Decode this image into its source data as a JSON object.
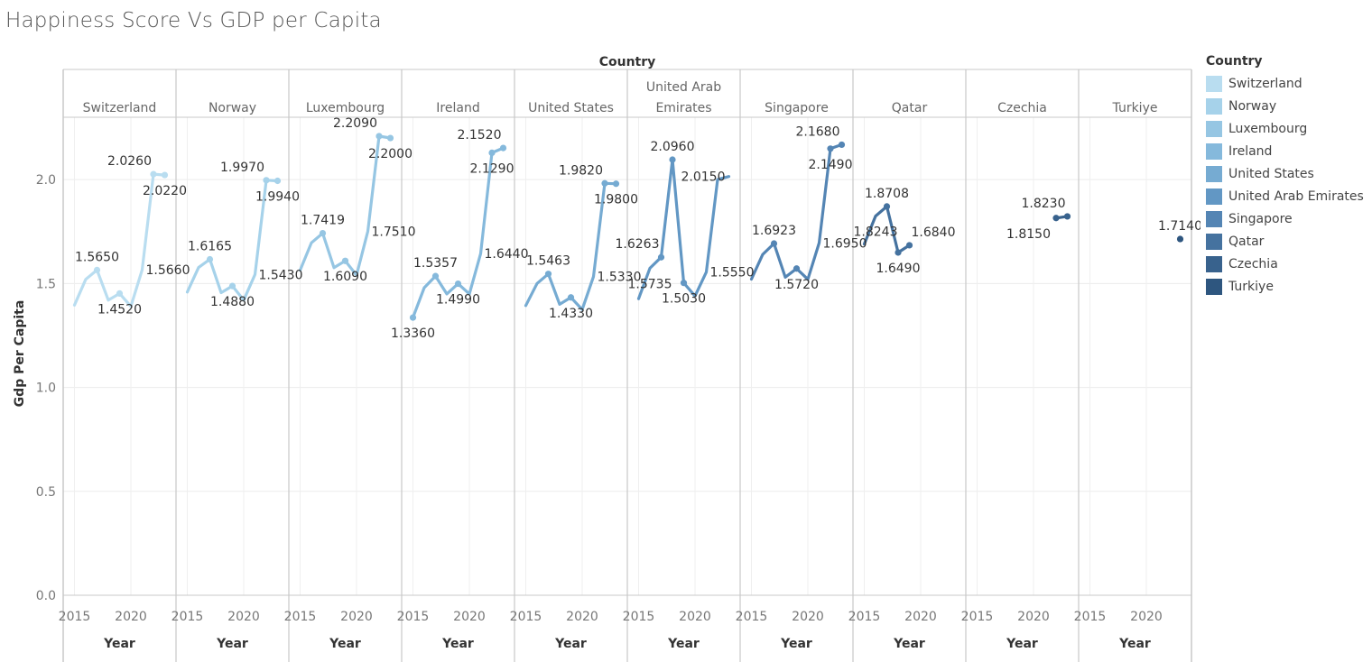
{
  "title": "Happiness Score Vs GDP per Capita",
  "chart_data": {
    "type": "line",
    "title": "Happiness Score Vs GDP per Capita",
    "column_header": "Country",
    "xlabel": "Year",
    "ylabel": "Gdp Per Capita",
    "ylim": [
      0,
      2.3
    ],
    "yticks": [
      "0.0",
      "0.5",
      "1.0",
      "1.5",
      "2.0"
    ],
    "xlim": [
      2014,
      2024
    ],
    "xticks": [
      "2015",
      "2020"
    ],
    "grid": true,
    "legend_title": "Country",
    "legend_position": "right",
    "panels": [
      {
        "name": "Switzerland",
        "name_lines": [
          "Switzerland"
        ],
        "color": "#b9ddf0",
        "x": [
          2015,
          2016,
          2017,
          2018,
          2019,
          2020,
          2021,
          2022,
          2023
        ],
        "y": [
          1.396,
          1.52,
          1.565,
          1.42,
          1.452,
          1.39,
          1.566,
          2.026,
          2.022
        ],
        "markers": [
          2017,
          2019,
          2022,
          2023
        ],
        "labels": [
          {
            "x": 2017,
            "text": "1.5650",
            "pos": "above"
          },
          {
            "x": 2019,
            "text": "1.4520",
            "pos": "below"
          },
          {
            "x": 2021,
            "text": "1.5660",
            "pos": "right"
          },
          {
            "x": 2022,
            "text": "2.0260",
            "pos": "above-left"
          },
          {
            "x": 2023,
            "text": "2.0220",
            "pos": "below"
          }
        ]
      },
      {
        "name": "Norway",
        "name_lines": [
          "Norway"
        ],
        "color": "#a6d2ea",
        "x": [
          2015,
          2016,
          2017,
          2018,
          2019,
          2020,
          2021,
          2022,
          2023
        ],
        "y": [
          1.459,
          1.577,
          1.6165,
          1.456,
          1.488,
          1.42,
          1.543,
          1.997,
          1.994
        ],
        "markers": [
          2017,
          2019,
          2022,
          2023
        ],
        "labels": [
          {
            "x": 2017,
            "text": "1.6165",
            "pos": "above"
          },
          {
            "x": 2019,
            "text": "1.4880",
            "pos": "below"
          },
          {
            "x": 2021,
            "text": "1.5430",
            "pos": "right"
          },
          {
            "x": 2022,
            "text": "1.9970",
            "pos": "above-left"
          },
          {
            "x": 2023,
            "text": "1.9940",
            "pos": "below"
          }
        ]
      },
      {
        "name": "Luxembourg",
        "name_lines": [
          "Luxembourg"
        ],
        "color": "#96c6e3",
        "x": [
          2015,
          2016,
          2017,
          2018,
          2019,
          2020,
          2021,
          2022,
          2023
        ],
        "y": [
          1.564,
          1.696,
          1.7419,
          1.576,
          1.609,
          1.54,
          1.751,
          2.209,
          2.2
        ],
        "markers": [
          2017,
          2019,
          2022,
          2023
        ],
        "labels": [
          {
            "x": 2017,
            "text": "1.7419",
            "pos": "above"
          },
          {
            "x": 2019,
            "text": "1.6090",
            "pos": "below"
          },
          {
            "x": 2021,
            "text": "1.7510",
            "pos": "right"
          },
          {
            "x": 2022,
            "text": "2.2090",
            "pos": "above-left"
          },
          {
            "x": 2023,
            "text": "2.2000",
            "pos": "below"
          }
        ]
      },
      {
        "name": "Ireland",
        "name_lines": [
          "Ireland"
        ],
        "color": "#85b9dc",
        "x": [
          2015,
          2016,
          2017,
          2018,
          2019,
          2020,
          2021,
          2022,
          2023
        ],
        "y": [
          1.336,
          1.48,
          1.5357,
          1.45,
          1.499,
          1.45,
          1.644,
          2.129,
          2.152
        ],
        "markers": [
          2015,
          2017,
          2019,
          2022,
          2023
        ],
        "labels": [
          {
            "x": 2015,
            "text": "1.3360",
            "pos": "below"
          },
          {
            "x": 2017,
            "text": "1.5357",
            "pos": "above"
          },
          {
            "x": 2019,
            "text": "1.4990",
            "pos": "below"
          },
          {
            "x": 2021,
            "text": "1.6440",
            "pos": "right"
          },
          {
            "x": 2022,
            "text": "2.1290",
            "pos": "below"
          },
          {
            "x": 2023,
            "text": "2.1520",
            "pos": "above-left"
          }
        ]
      },
      {
        "name": "United States",
        "name_lines": [
          "United States"
        ],
        "color": "#76abd2",
        "x": [
          2015,
          2016,
          2017,
          2018,
          2019,
          2020,
          2021,
          2022,
          2023
        ],
        "y": [
          1.394,
          1.5,
          1.5463,
          1.4,
          1.433,
          1.375,
          1.533,
          1.982,
          1.98
        ],
        "markers": [
          2017,
          2019,
          2022,
          2023
        ],
        "labels": [
          {
            "x": 2017,
            "text": "1.5463",
            "pos": "above"
          },
          {
            "x": 2019,
            "text": "1.4330",
            "pos": "below"
          },
          {
            "x": 2021,
            "text": "1.5330",
            "pos": "right"
          },
          {
            "x": 2022,
            "text": "1.9820",
            "pos": "above-left"
          },
          {
            "x": 2023,
            "text": "1.9800",
            "pos": "below"
          }
        ]
      },
      {
        "name": "United Arab Emirates",
        "name_lines": [
          "United Arab",
          "Emirates"
        ],
        "color": "#6297c4",
        "x": [
          2015,
          2016,
          2017,
          2018,
          2019,
          2020,
          2021,
          2022,
          2023
        ],
        "y": [
          1.427,
          1.5735,
          1.6263,
          2.096,
          1.503,
          1.44,
          1.555,
          2.0,
          2.015
        ],
        "markers": [
          2017,
          2018,
          2019
        ],
        "labels": [
          {
            "x": 2016,
            "text": "1.5735",
            "pos": "below"
          },
          {
            "x": 2017,
            "text": "1.6263",
            "pos": "above-left"
          },
          {
            "x": 2018,
            "text": "2.0960",
            "pos": "above"
          },
          {
            "x": 2019,
            "text": "1.5030",
            "pos": "below"
          },
          {
            "x": 2021,
            "text": "1.5550",
            "pos": "right"
          },
          {
            "x": 2023,
            "text": "2.0150",
            "pos": "left"
          }
        ]
      },
      {
        "name": "Singapore",
        "name_lines": [
          "Singapore"
        ],
        "color": "#5485b4",
        "x": [
          2015,
          2016,
          2017,
          2018,
          2019,
          2020,
          2021,
          2022,
          2023
        ],
        "y": [
          1.521,
          1.64,
          1.6923,
          1.53,
          1.572,
          1.52,
          1.695,
          2.149,
          2.168
        ],
        "markers": [
          2017,
          2019,
          2022,
          2023
        ],
        "labels": [
          {
            "x": 2017,
            "text": "1.6923",
            "pos": "above"
          },
          {
            "x": 2019,
            "text": "1.5720",
            "pos": "below"
          },
          {
            "x": 2021,
            "text": "1.6950",
            "pos": "right"
          },
          {
            "x": 2022,
            "text": "2.1490",
            "pos": "below"
          },
          {
            "x": 2023,
            "text": "2.1680",
            "pos": "above-left"
          }
        ]
      },
      {
        "name": "Qatar",
        "name_lines": [
          "Qatar"
        ],
        "color": "#45729f",
        "x": [
          2015,
          2016,
          2017,
          2018,
          2019
        ],
        "y": [
          1.69,
          1.8243,
          1.8708,
          1.649,
          1.684
        ],
        "markers": [
          2017,
          2018,
          2019
        ],
        "labels": [
          {
            "x": 2016,
            "text": "1.8243",
            "pos": "below"
          },
          {
            "x": 2017,
            "text": "1.8708",
            "pos": "above"
          },
          {
            "x": 2018,
            "text": "1.6490",
            "pos": "below"
          },
          {
            "x": 2019,
            "text": "1.6840",
            "pos": "above-right"
          }
        ]
      },
      {
        "name": "Czechia",
        "name_lines": [
          "Czechia"
        ],
        "color": "#38628d",
        "x": [
          2022,
          2023
        ],
        "y": [
          1.815,
          1.823
        ],
        "markers": [
          2022,
          2023
        ],
        "labels": [
          {
            "x": 2022,
            "text": "1.8150",
            "pos": "below-left"
          },
          {
            "x": 2023,
            "text": "1.8230",
            "pos": "above-left"
          }
        ]
      },
      {
        "name": "Turkiye",
        "name_lines": [
          "Turkiye"
        ],
        "color": "#2e567f",
        "x": [
          2023
        ],
        "y": [
          1.714
        ],
        "markers": [
          2023
        ],
        "labels": [
          {
            "x": 2023,
            "text": "1.7140",
            "pos": "above"
          }
        ]
      }
    ]
  }
}
